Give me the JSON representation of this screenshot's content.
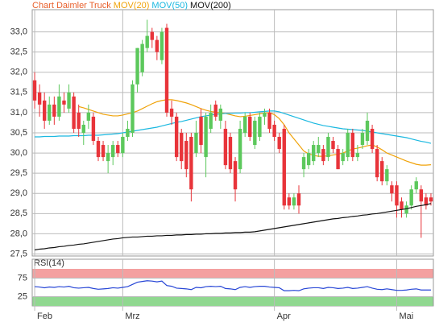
{
  "chart_data": [
    {
      "type": "candlestick",
      "title": "Chart Daimler Truck",
      "title_color": "#e8602c",
      "categories": [
        "Feb",
        null,
        null,
        null,
        null,
        null,
        null,
        null,
        null,
        null,
        null,
        null,
        null,
        null,
        null,
        null,
        null,
        null,
        "Mrz",
        null,
        null,
        null,
        null,
        null,
        null,
        null,
        null,
        null,
        null,
        null,
        null,
        null,
        null,
        null,
        null,
        null,
        null,
        null,
        null,
        null,
        null,
        null,
        null,
        null,
        null,
        null,
        null,
        null,
        null,
        "Apr",
        null,
        null,
        null,
        null,
        null,
        null,
        null,
        null,
        null,
        null,
        null,
        null,
        null,
        null,
        null,
        null,
        null,
        null,
        null,
        null,
        null,
        null,
        null,
        null,
        "Mai",
        null,
        null,
        null,
        null,
        null,
        null,
        null
      ],
      "open": [
        31.8,
        31.5,
        31.3,
        30.8,
        31.2,
        30.9,
        31.3,
        31.1,
        31.4,
        31.0,
        30.5,
        30.8,
        30.9,
        30.3,
        30.2,
        29.8,
        29.9,
        30.2,
        30.0,
        30.4,
        30.5,
        31.7,
        32.0,
        32.6,
        33.0,
        32.8,
        32.3,
        33.1,
        31.1,
        30.9,
        30.5,
        30.3,
        30.4,
        30.0,
        30.9,
        29.9,
        30.6,
        31.2,
        30.8,
        30.6,
        30.4,
        29.8,
        29.6,
        30.5,
        30.9,
        30.2,
        30.4,
        30.9,
        31.0,
        30.7,
        30.4,
        30.6,
        28.9,
        28.7,
        29.0,
        29.6,
        29.7,
        29.8,
        30.0,
        30.1,
        29.9,
        30.3,
        30.1,
        29.8,
        29.9,
        30.5,
        29.9,
        30.2,
        30.3,
        30.6,
        30.1,
        29.8,
        29.3,
        29.2,
        29.2,
        28.8,
        28.5,
        28.7,
        29.1,
        29.1,
        28.9,
        28.9
      ],
      "close": [
        31.3,
        31.2,
        30.8,
        31.2,
        30.9,
        31.4,
        31.2,
        31.5,
        30.6,
        30.6,
        30.7,
        31.0,
        30.3,
        29.9,
        29.9,
        30.0,
        30.2,
        30.0,
        30.4,
        30.6,
        31.7,
        32.6,
        32.7,
        32.9,
        32.8,
        32.5,
        33.0,
        31.0,
        30.9,
        29.9,
        29.8,
        29.6,
        29.1,
        30.5,
        30.2,
        30.9,
        31.0,
        30.9,
        31.1,
        29.7,
        29.6,
        29.1,
        30.6,
        30.9,
        30.4,
        30.8,
        30.9,
        31.0,
        30.6,
        30.4,
        30.1,
        28.7,
        28.7,
        28.9,
        28.7,
        29.9,
        30.0,
        30.2,
        30.2,
        29.8,
        30.4,
        30.1,
        29.6,
        30.0,
        30.5,
        29.9,
        30.0,
        30.5,
        30.8,
        30.1,
        29.4,
        29.3,
        29.6,
        29.0,
        28.7,
        28.6,
        28.7,
        29.1,
        29.3,
        28.8,
        28.7,
        28.8
      ],
      "high": [
        32.0,
        31.7,
        31.5,
        31.4,
        31.4,
        31.7,
        31.5,
        31.7,
        31.5,
        31.2,
        30.8,
        31.2,
        31.0,
        30.4,
        30.3,
        30.2,
        30.3,
        30.3,
        30.5,
        30.8,
        31.8,
        32.6,
        32.8,
        33.3,
        33.1,
        32.9,
        33.1,
        33.2,
        31.3,
        31.0,
        30.6,
        30.5,
        30.5,
        30.8,
        31.1,
        31.0,
        31.2,
        31.3,
        31.2,
        30.8,
        30.5,
        29.9,
        30.8,
        31.0,
        31.0,
        30.9,
        31.0,
        31.1,
        31.1,
        30.8,
        30.5,
        30.7,
        29.0,
        29.0,
        29.2,
        30.0,
        30.1,
        30.3,
        30.4,
        30.2,
        30.5,
        30.4,
        30.2,
        30.1,
        30.6,
        30.6,
        30.2,
        30.6,
        31.0,
        30.7,
        30.2,
        29.9,
        29.7,
        29.3,
        29.3,
        28.9,
        28.8,
        29.2,
        29.4,
        29.2,
        29.0,
        29.0
      ],
      "low": [
        31.1,
        30.9,
        30.6,
        30.7,
        30.7,
        30.8,
        31.0,
        31.0,
        30.5,
        30.4,
        30.2,
        30.6,
        30.2,
        29.8,
        29.8,
        29.5,
        29.7,
        29.9,
        29.9,
        30.3,
        30.4,
        31.5,
        31.9,
        32.5,
        32.6,
        32.3,
        32.2,
        30.9,
        30.7,
        29.8,
        29.6,
        29.4,
        28.8,
        29.9,
        30.0,
        29.4,
        30.5,
        30.8,
        30.6,
        29.6,
        29.5,
        28.8,
        29.5,
        30.4,
        30.3,
        30.1,
        30.3,
        30.7,
        30.5,
        30.3,
        30.0,
        28.6,
        28.6,
        28.6,
        28.5,
        29.4,
        29.6,
        29.7,
        29.9,
        29.7,
        29.8,
        30.0,
        29.6,
        29.7,
        29.8,
        29.8,
        29.8,
        30.1,
        30.2,
        30.0,
        29.3,
        29.2,
        29.2,
        28.8,
        28.4,
        28.4,
        28.4,
        28.6,
        29.0,
        27.9,
        28.6,
        28.7
      ],
      "up_color": "#5cc85c",
      "down_color": "#e8343a",
      "series": [
        {
          "name": "MOV(20)",
          "color": "#f0a30a",
          "values": [
            null,
            null,
            null,
            null,
            null,
            null,
            null,
            null,
            null,
            31.15,
            31.12,
            31.08,
            31.04,
            31.0,
            30.96,
            30.94,
            30.92,
            30.92,
            30.94,
            30.97,
            31.0,
            31.04,
            31.1,
            31.16,
            31.22,
            31.27,
            31.3,
            31.32,
            31.32,
            31.3,
            31.27,
            31.24,
            31.2,
            31.15,
            31.1,
            31.06,
            31.03,
            31.01,
            31.0,
            30.98,
            30.95,
            30.92,
            30.9,
            30.91,
            30.93,
            30.95,
            30.97,
            30.99,
            31.0,
            30.95,
            30.85,
            30.7,
            30.5,
            30.35,
            30.2,
            30.05,
            29.98,
            29.94,
            29.92,
            29.92,
            29.93,
            29.95,
            29.97,
            30.0,
            30.05,
            30.1,
            30.12,
            30.15,
            30.18,
            30.2,
            30.15,
            30.08,
            30.0,
            29.95,
            29.9,
            29.85,
            29.8,
            29.76,
            29.72,
            29.7,
            29.7,
            29.71
          ]
        },
        {
          "name": "MOV(50)",
          "color": "#1ab8e0",
          "values": [
            30.4,
            30.4,
            30.41,
            30.41,
            30.41,
            30.42,
            30.42,
            30.42,
            30.43,
            30.43,
            30.43,
            30.44,
            30.44,
            30.44,
            30.45,
            30.46,
            30.47,
            30.48,
            30.5,
            30.52,
            30.54,
            30.56,
            30.58,
            30.6,
            30.62,
            30.64,
            30.67,
            30.7,
            30.73,
            30.76,
            30.78,
            30.81,
            30.84,
            30.87,
            30.9,
            30.92,
            30.94,
            30.96,
            30.97,
            30.98,
            30.98,
            30.99,
            30.99,
            31.0,
            31.0,
            31.01,
            31.02,
            31.03,
            31.04,
            31.04,
            31.02,
            30.98,
            30.94,
            30.9,
            30.86,
            30.82,
            30.78,
            30.74,
            30.71,
            30.68,
            30.66,
            30.64,
            30.62,
            30.6,
            30.59,
            30.58,
            30.57,
            30.56,
            30.54,
            30.52,
            30.5,
            30.48,
            30.46,
            30.44,
            30.42,
            30.4,
            30.38,
            30.35,
            30.32,
            30.29,
            30.27,
            30.24
          ]
        },
        {
          "name": "MOV(200)",
          "color": "#111111",
          "values": [
            27.6,
            27.62,
            27.63,
            27.65,
            27.66,
            27.68,
            27.69,
            27.71,
            27.72,
            27.74,
            27.75,
            27.77,
            27.79,
            27.81,
            27.83,
            27.85,
            27.87,
            27.88,
            27.9,
            27.91,
            27.92,
            27.92,
            27.93,
            27.94,
            27.94,
            27.95,
            27.95,
            27.96,
            27.96,
            27.97,
            27.97,
            27.98,
            27.98,
            27.99,
            27.99,
            28.0,
            28.0,
            28.01,
            28.01,
            28.02,
            28.02,
            28.03,
            28.03,
            28.04,
            28.04,
            28.05,
            28.07,
            28.09,
            28.11,
            28.13,
            28.15,
            28.17,
            28.19,
            28.21,
            28.23,
            28.25,
            28.27,
            28.29,
            28.31,
            28.33,
            28.35,
            28.37,
            28.38,
            28.4,
            28.41,
            28.43,
            28.44,
            28.46,
            28.47,
            28.49,
            28.5,
            28.52,
            28.54,
            28.56,
            28.58,
            28.6,
            28.62,
            28.65,
            28.68,
            28.7,
            28.72,
            28.75
          ]
        }
      ],
      "ylim": [
        27.45,
        33.55
      ],
      "yticks": [
        {
          "value": 27.5,
          "label": "27,5"
        },
        {
          "value": 28,
          "label": "28,0"
        },
        {
          "value": 28.5,
          "label": "28,5"
        },
        {
          "value": 29,
          "label": "29,0"
        },
        {
          "value": 29.5,
          "label": "29,5"
        },
        {
          "value": 30,
          "label": "30,0"
        },
        {
          "value": 30.5,
          "label": "30,5"
        },
        {
          "value": 31,
          "label": "31,0"
        },
        {
          "value": 31.5,
          "label": "31,5"
        },
        {
          "value": 32,
          "label": "32,0"
        },
        {
          "value": 32.5,
          "label": "32,5"
        },
        {
          "value": 33,
          "label": "33,0"
        }
      ],
      "grid": true
    },
    {
      "type": "line",
      "title": "RSI(14)",
      "series": [
        {
          "color": "#2746d6",
          "values": [
            52,
            51,
            49,
            51,
            50,
            52,
            51,
            53,
            49,
            48,
            49,
            50,
            47,
            45,
            46,
            47,
            49,
            48,
            50,
            52,
            58,
            64,
            66,
            68,
            67,
            65,
            67,
            55,
            53,
            48,
            47,
            46,
            44,
            50,
            49,
            52,
            53,
            52,
            53,
            47,
            46,
            44,
            50,
            52,
            50,
            52,
            53,
            53,
            51,
            50,
            49,
            41,
            41,
            42,
            41,
            46,
            48,
            49,
            49,
            47,
            50,
            49,
            47,
            48,
            50,
            47,
            48,
            50,
            52,
            48,
            45,
            44,
            46,
            44,
            42,
            42,
            43,
            45,
            46,
            43,
            43,
            43
          ]
        }
      ],
      "ylim": [
        0,
        100
      ],
      "yticks": [
        25,
        75
      ],
      "bands": [
        {
          "from": 75,
          "to": 100,
          "color": "#f4a0a0"
        },
        {
          "from": 0,
          "to": 25,
          "color": "#90d890"
        }
      ],
      "grid": true
    }
  ]
}
